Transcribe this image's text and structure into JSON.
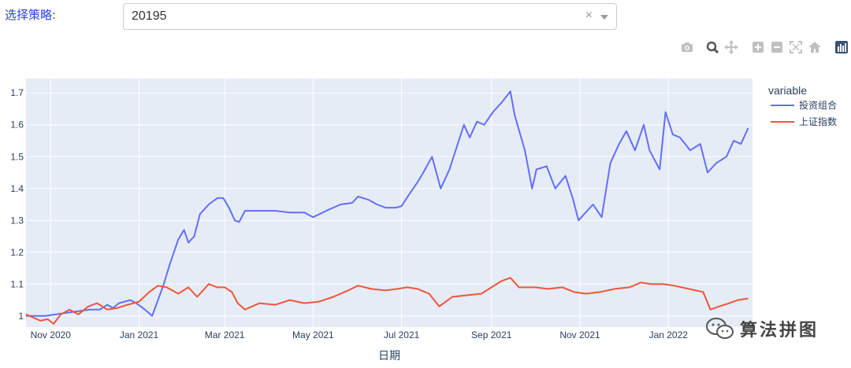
{
  "header": {
    "strategy_label": "选择策略:",
    "select": {
      "value": "20195",
      "clear_symbol": "×"
    }
  },
  "modebar": {
    "icons": [
      "camera-icon",
      "zoom-icon",
      "pan-icon",
      "zoom-in-icon",
      "zoom-out-icon",
      "autoscale-icon",
      "reset-axes-icon",
      "plotly-logo-icon"
    ]
  },
  "watermark": {
    "text": "算法拼图"
  },
  "chart_data": {
    "type": "line",
    "xlabel": "日期",
    "ylabel": "",
    "xlim": [
      "2020-10-15",
      "2022-02-28"
    ],
    "ylim": [
      0.965,
      1.745
    ],
    "x_ticks": [
      {
        "date": "2020-11-01",
        "label": "Nov 2020"
      },
      {
        "date": "2021-01-01",
        "label": "Jan 2021"
      },
      {
        "date": "2021-03-01",
        "label": "Mar 2021"
      },
      {
        "date": "2021-05-01",
        "label": "May 2021"
      },
      {
        "date": "2021-07-01",
        "label": "Jul 2021"
      },
      {
        "date": "2021-09-01",
        "label": "Sep 2021"
      },
      {
        "date": "2021-11-01",
        "label": "Nov 2021"
      },
      {
        "date": "2022-01-01",
        "label": "Jan 2022"
      }
    ],
    "y_ticks": [
      1,
      1.1,
      1.2,
      1.3,
      1.4,
      1.5,
      1.6,
      1.7
    ],
    "y_tick_labels": [
      "1",
      "1.1",
      "1.2",
      "1.3",
      "1.4",
      "1.5",
      "1.6",
      "1.7"
    ],
    "grid": true,
    "legend": {
      "title": "variable",
      "placement": "right"
    },
    "series": [
      {
        "name": "投资组合",
        "color": "#636efa",
        "points": [
          [
            "2020-10-15",
            1.0
          ],
          [
            "2020-10-20",
            1.0
          ],
          [
            "2020-10-28",
            1.0
          ],
          [
            "2020-11-05",
            1.005
          ],
          [
            "2020-11-12",
            1.01
          ],
          [
            "2020-11-20",
            1.015
          ],
          [
            "2020-11-28",
            1.02
          ],
          [
            "2020-12-05",
            1.02
          ],
          [
            "2020-12-10",
            1.035
          ],
          [
            "2020-12-14",
            1.025
          ],
          [
            "2020-12-18",
            1.04
          ],
          [
            "2020-12-22",
            1.045
          ],
          [
            "2020-12-26",
            1.05
          ],
          [
            "2020-12-30",
            1.04
          ],
          [
            "2021-01-05",
            1.02
          ],
          [
            "2021-01-10",
            1.0
          ],
          [
            "2021-01-14",
            1.05
          ],
          [
            "2021-01-18",
            1.1
          ],
          [
            "2021-01-22",
            1.16
          ],
          [
            "2021-01-28",
            1.24
          ],
          [
            "2021-02-01",
            1.27
          ],
          [
            "2021-02-04",
            1.23
          ],
          [
            "2021-02-08",
            1.25
          ],
          [
            "2021-02-12",
            1.32
          ],
          [
            "2021-02-18",
            1.35
          ],
          [
            "2021-02-24",
            1.37
          ],
          [
            "2021-02-28",
            1.37
          ],
          [
            "2021-03-04",
            1.34
          ],
          [
            "2021-03-08",
            1.3
          ],
          [
            "2021-03-11",
            1.295
          ],
          [
            "2021-03-15",
            1.33
          ],
          [
            "2021-03-25",
            1.33
          ],
          [
            "2021-04-05",
            1.33
          ],
          [
            "2021-04-15",
            1.325
          ],
          [
            "2021-04-25",
            1.325
          ],
          [
            "2021-05-01",
            1.31
          ],
          [
            "2021-05-10",
            1.33
          ],
          [
            "2021-05-20",
            1.35
          ],
          [
            "2021-05-28",
            1.355
          ],
          [
            "2021-06-01",
            1.375
          ],
          [
            "2021-06-08",
            1.365
          ],
          [
            "2021-06-14",
            1.35
          ],
          [
            "2021-06-20",
            1.34
          ],
          [
            "2021-06-27",
            1.34
          ],
          [
            "2021-07-01",
            1.345
          ],
          [
            "2021-07-06",
            1.38
          ],
          [
            "2021-07-12",
            1.42
          ],
          [
            "2021-07-16",
            1.45
          ],
          [
            "2021-07-22",
            1.5
          ],
          [
            "2021-07-28",
            1.4
          ],
          [
            "2021-08-03",
            1.46
          ],
          [
            "2021-08-08",
            1.53
          ],
          [
            "2021-08-13",
            1.6
          ],
          [
            "2021-08-17",
            1.56
          ],
          [
            "2021-08-22",
            1.61
          ],
          [
            "2021-08-27",
            1.6
          ],
          [
            "2021-09-02",
            1.64
          ],
          [
            "2021-09-08",
            1.67
          ],
          [
            "2021-09-14",
            1.705
          ],
          [
            "2021-09-17",
            1.63
          ],
          [
            "2021-09-24",
            1.52
          ],
          [
            "2021-09-29",
            1.4
          ],
          [
            "2021-10-02",
            1.46
          ],
          [
            "2021-10-09",
            1.47
          ],
          [
            "2021-10-15",
            1.4
          ],
          [
            "2021-10-22",
            1.44
          ],
          [
            "2021-10-27",
            1.37
          ],
          [
            "2021-10-31",
            1.3
          ],
          [
            "2021-11-04",
            1.32
          ],
          [
            "2021-11-10",
            1.35
          ],
          [
            "2021-11-16",
            1.31
          ],
          [
            "2021-11-22",
            1.48
          ],
          [
            "2021-11-28",
            1.54
          ],
          [
            "2021-12-03",
            1.58
          ],
          [
            "2021-12-09",
            1.52
          ],
          [
            "2021-12-15",
            1.6
          ],
          [
            "2021-12-19",
            1.52
          ],
          [
            "2021-12-26",
            1.46
          ],
          [
            "2021-12-30",
            1.64
          ],
          [
            "2022-01-04",
            1.57
          ],
          [
            "2022-01-09",
            1.56
          ],
          [
            "2022-01-16",
            1.52
          ],
          [
            "2022-01-23",
            1.54
          ],
          [
            "2022-01-28",
            1.45
          ],
          [
            "2022-02-03",
            1.48
          ],
          [
            "2022-02-10",
            1.5
          ],
          [
            "2022-02-15",
            1.55
          ],
          [
            "2022-02-20",
            1.54
          ],
          [
            "2022-02-25",
            1.59
          ]
        ]
      },
      {
        "name": "上证指数",
        "color": "#ef553b",
        "points": [
          [
            "2020-10-15",
            1.005
          ],
          [
            "2020-10-20",
            0.995
          ],
          [
            "2020-10-25",
            0.985
          ],
          [
            "2020-10-30",
            0.99
          ],
          [
            "2020-11-03",
            0.975
          ],
          [
            "2020-11-08",
            1.005
          ],
          [
            "2020-11-14",
            1.02
          ],
          [
            "2020-11-20",
            1.005
          ],
          [
            "2020-11-27",
            1.03
          ],
          [
            "2020-12-03",
            1.04
          ],
          [
            "2020-12-10",
            1.02
          ],
          [
            "2020-12-17",
            1.025
          ],
          [
            "2020-12-24",
            1.035
          ],
          [
            "2021-01-01",
            1.045
          ],
          [
            "2021-01-08",
            1.075
          ],
          [
            "2021-01-14",
            1.095
          ],
          [
            "2021-01-20",
            1.09
          ],
          [
            "2021-01-28",
            1.07
          ],
          [
            "2021-02-04",
            1.09
          ],
          [
            "2021-02-10",
            1.06
          ],
          [
            "2021-02-18",
            1.1
          ],
          [
            "2021-02-24",
            1.09
          ],
          [
            "2021-03-01",
            1.09
          ],
          [
            "2021-03-06",
            1.075
          ],
          [
            "2021-03-10",
            1.04
          ],
          [
            "2021-03-15",
            1.02
          ],
          [
            "2021-03-25",
            1.04
          ],
          [
            "2021-04-05",
            1.035
          ],
          [
            "2021-04-15",
            1.05
          ],
          [
            "2021-04-25",
            1.04
          ],
          [
            "2021-05-05",
            1.045
          ],
          [
            "2021-05-15",
            1.06
          ],
          [
            "2021-05-25",
            1.08
          ],
          [
            "2021-06-01",
            1.095
          ],
          [
            "2021-06-10",
            1.085
          ],
          [
            "2021-06-20",
            1.08
          ],
          [
            "2021-06-28",
            1.085
          ],
          [
            "2021-07-05",
            1.09
          ],
          [
            "2021-07-12",
            1.085
          ],
          [
            "2021-07-20",
            1.07
          ],
          [
            "2021-07-27",
            1.03
          ],
          [
            "2021-08-05",
            1.06
          ],
          [
            "2021-08-15",
            1.065
          ],
          [
            "2021-08-25",
            1.07
          ],
          [
            "2021-09-01",
            1.09
          ],
          [
            "2021-09-08",
            1.11
          ],
          [
            "2021-09-14",
            1.12
          ],
          [
            "2021-09-20",
            1.09
          ],
          [
            "2021-10-01",
            1.09
          ],
          [
            "2021-10-10",
            1.085
          ],
          [
            "2021-10-20",
            1.09
          ],
          [
            "2021-10-28",
            1.075
          ],
          [
            "2021-11-05",
            1.07
          ],
          [
            "2021-11-15",
            1.075
          ],
          [
            "2021-11-25",
            1.085
          ],
          [
            "2021-12-05",
            1.09
          ],
          [
            "2021-12-13",
            1.105
          ],
          [
            "2021-12-20",
            1.1
          ],
          [
            "2021-12-28",
            1.1
          ],
          [
            "2022-01-05",
            1.095
          ],
          [
            "2022-01-15",
            1.085
          ],
          [
            "2022-01-25",
            1.075
          ],
          [
            "2022-01-30",
            1.02
          ],
          [
            "2022-02-05",
            1.03
          ],
          [
            "2022-02-12",
            1.04
          ],
          [
            "2022-02-18",
            1.05
          ],
          [
            "2022-02-25",
            1.055
          ]
        ]
      }
    ]
  }
}
